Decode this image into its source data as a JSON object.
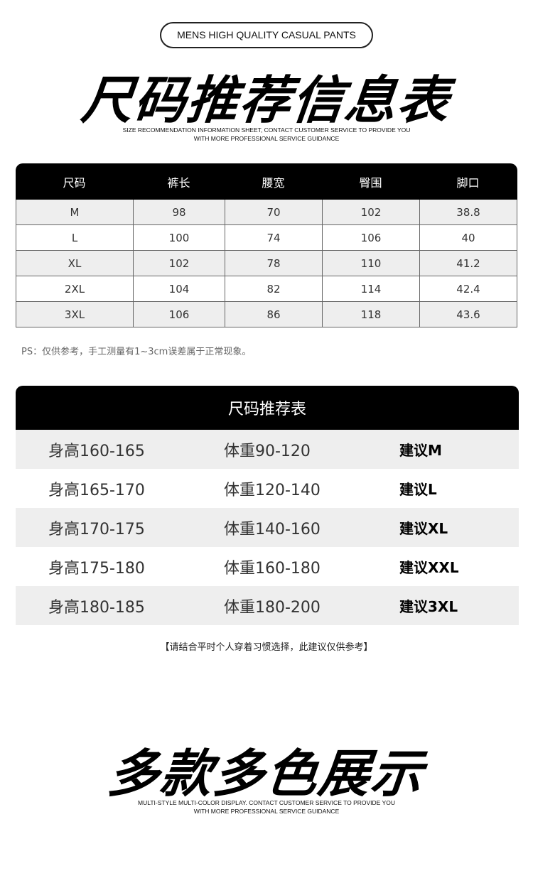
{
  "header": {
    "pill": "MENS HIGH QUALITY CASUAL PANTS",
    "title": "尺码推荐信息表",
    "sub1": "SIZE RECOMMENDATION INFORMATION SHEET, CONTACT CUSTOMER SERVICE TO PROVIDE YOU",
    "sub2": "WITH MORE PROFESSIONAL SERVICE GUIDANCE"
  },
  "size_table": {
    "headers": [
      "尺码",
      "裤长",
      "腰宽",
      "臀围",
      "脚口"
    ],
    "rows": [
      [
        "M",
        "98",
        "70",
        "102",
        "38.8"
      ],
      [
        "L",
        "100",
        "74",
        "106",
        "40"
      ],
      [
        "XL",
        "102",
        "78",
        "110",
        "41.2"
      ],
      [
        "2XL",
        "104",
        "82",
        "114",
        "42.4"
      ],
      [
        "3XL",
        "106",
        "86",
        "118",
        "43.6"
      ]
    ]
  },
  "ps": "PS：仅供参考，手工测量有1~3cm误差属于正常现象。",
  "recommend": {
    "title": "尺码推荐表",
    "rows": [
      [
        "身高160-165",
        "体重90-120",
        "建议M"
      ],
      [
        "身高165-170",
        "体重120-140",
        "建议L"
      ],
      [
        "身高170-175",
        "体重140-160",
        "建议XL"
      ],
      [
        "身高175-180",
        "体重160-180",
        "建议XXL"
      ],
      [
        "身高180-185",
        "体重180-200",
        "建议3XL"
      ]
    ]
  },
  "note": "【请结合平时个人穿着习惯选择，此建议仅供参考】",
  "footer": {
    "title": "多款多色展示",
    "sub1": "MULTI-STYLE MULTI-COLOR DISPLAY. CONTACT CUSTOMER SERVICE TO PROVIDE YOU",
    "sub2": "WITH MORE PROFESSIONAL SERVICE GUIDANCE"
  }
}
